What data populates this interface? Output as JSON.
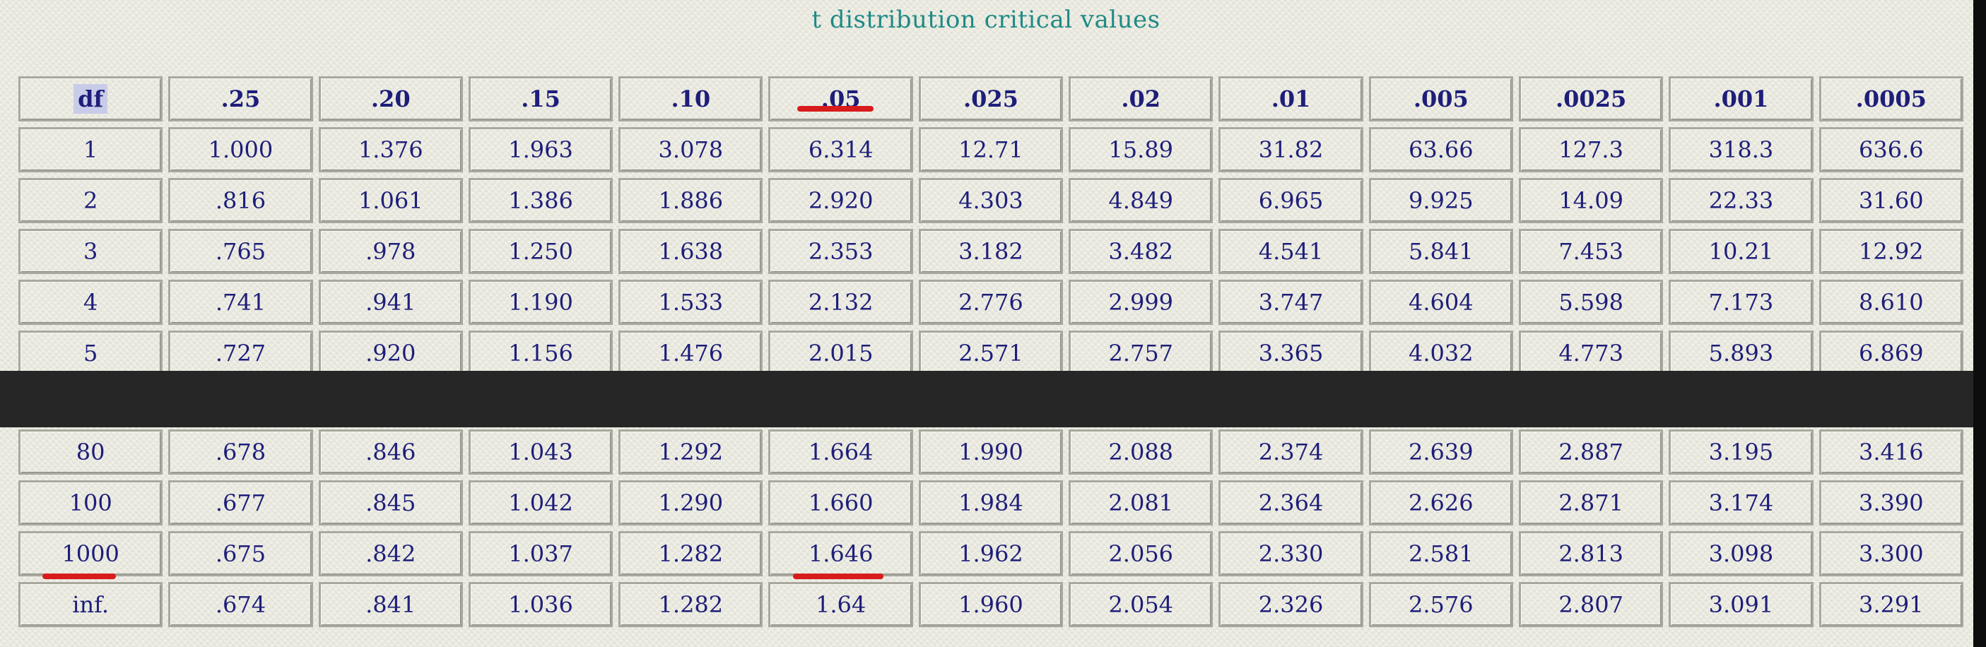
{
  "title": "t distribution critical values",
  "table": {
    "headers": [
      "df",
      ".25",
      ".20",
      ".15",
      ".10",
      ".05",
      ".025",
      ".02",
      ".01",
      ".005",
      ".0025",
      ".001",
      ".0005"
    ],
    "rows_top": [
      [
        "1",
        "1.000",
        "1.376",
        "1.963",
        "3.078",
        "6.314",
        "12.71",
        "15.89",
        "31.82",
        "63.66",
        "127.3",
        "318.3",
        "636.6"
      ],
      [
        "2",
        ".816",
        "1.061",
        "1.386",
        "1.886",
        "2.920",
        "4.303",
        "4.849",
        "6.965",
        "9.925",
        "14.09",
        "22.33",
        "31.60"
      ],
      [
        "3",
        ".765",
        ".978",
        "1.250",
        "1.638",
        "2.353",
        "3.182",
        "3.482",
        "4.541",
        "5.841",
        "7.453",
        "10.21",
        "12.92"
      ],
      [
        "4",
        ".741",
        ".941",
        "1.190",
        "1.533",
        "2.132",
        "2.776",
        "2.999",
        "3.747",
        "4.604",
        "5.598",
        "7.173",
        "8.610"
      ],
      [
        "5",
        ".727",
        ".920",
        "1.156",
        "1.476",
        "2.015",
        "2.571",
        "2.757",
        "3.365",
        "4.032",
        "4.773",
        "5.893",
        "6.869"
      ]
    ],
    "rows_bottom": [
      [
        "80",
        ".678",
        ".846",
        "1.043",
        "1.292",
        "1.664",
        "1.990",
        "2.088",
        "2.374",
        "2.639",
        "2.887",
        "3.195",
        "3.416"
      ],
      [
        "100",
        ".677",
        ".845",
        "1.042",
        "1.290",
        "1.660",
        "1.984",
        "2.081",
        "2.364",
        "2.626",
        "2.871",
        "3.174",
        "3.390"
      ],
      [
        "1000",
        ".675",
        ".842",
        "1.037",
        "1.282",
        "1.646",
        "1.962",
        "2.056",
        "2.330",
        "2.581",
        "2.813",
        "3.098",
        "3.300"
      ],
      [
        "inf.",
        ".674",
        ".841",
        "1.036",
        "1.282",
        "1.64",
        "1.960",
        "2.054",
        "2.326",
        "2.576",
        "2.807",
        "3.091",
        "3.291"
      ]
    ]
  },
  "colors": {
    "title": "#1f8a85",
    "cell_text": "#1e1e7a",
    "underline": "#d81b1b",
    "redaction": "#262626",
    "background": "#ebebe1"
  }
}
